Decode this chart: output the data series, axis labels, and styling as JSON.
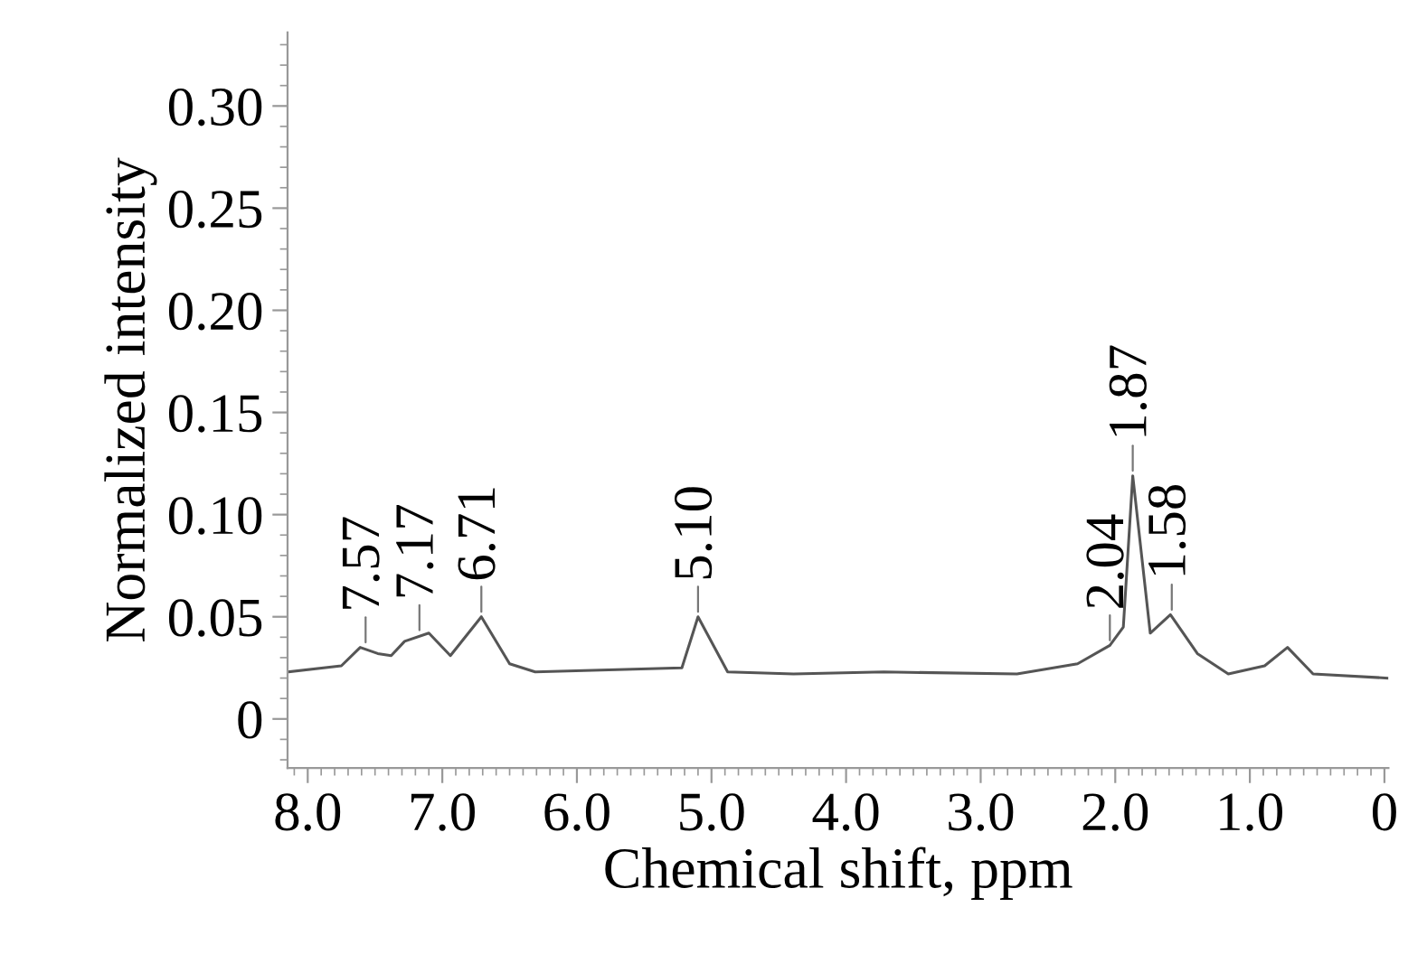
{
  "chart_data": {
    "type": "line",
    "xlabel": "Chemical shift, ppm",
    "ylabel": "Normalized intensity",
    "x": [
      8.15,
      7.75,
      7.61,
      7.48,
      7.38,
      7.28,
      7.1,
      6.94,
      6.71,
      6.5,
      6.31,
      5.22,
      5.1,
      4.88,
      4.39,
      3.72,
      2.73,
      2.28,
      2.04,
      1.94,
      1.87,
      1.74,
      1.59,
      1.39,
      1.16,
      0.89,
      0.72,
      0.53,
      -0.02
    ],
    "series": [
      {
        "color": "#555555",
        "values": [
          0.023,
          0.026,
          0.035,
          0.032,
          0.031,
          0.038,
          0.042,
          0.031,
          0.05,
          0.027,
          0.023,
          0.025,
          0.05,
          0.023,
          0.022,
          0.023,
          0.022,
          0.027,
          0.036,
          0.045,
          0.119,
          0.042,
          0.051,
          0.032,
          0.022,
          0.026,
          0.035,
          0.022,
          0.02
        ]
      }
    ],
    "xlim": [
      8.15,
      -0.03
    ],
    "ylim": [
      -0.024,
      0.336
    ],
    "xticks": [
      {
        "value": 8.0,
        "label": "8.0"
      },
      {
        "value": 7.0,
        "label": "7.0"
      },
      {
        "value": 6.0,
        "label": "6.0"
      },
      {
        "value": 5.0,
        "label": "5.0"
      },
      {
        "value": 4.0,
        "label": "4.0"
      },
      {
        "value": 3.0,
        "label": "3.0"
      },
      {
        "value": 2.0,
        "label": "2.0"
      },
      {
        "value": 1.0,
        "label": "1.0"
      },
      0
    ],
    "yticks": [
      0,
      0.05,
      {
        "value": 0.1,
        "label": "0.10"
      },
      0.15,
      {
        "value": 0.2,
        "label": "0.20"
      },
      0.25,
      {
        "value": 0.3,
        "label": "0.30"
      }
    ],
    "grid": false,
    "legend": false,
    "annotations": [
      {
        "text": "7.57",
        "x": 7.57,
        "y": 0.035
      },
      {
        "text": "7.17",
        "x": 7.17,
        "y": 0.041
      },
      {
        "text": "6.71",
        "x": 6.71,
        "y": 0.05
      },
      {
        "text": "5.10",
        "x": 5.1,
        "y": 0.05
      },
      {
        "text": "2.04",
        "x": 2.04,
        "y": 0.036
      },
      {
        "text": "1.87",
        "x": 1.87,
        "y": 0.119
      },
      {
        "text": "1.58",
        "x": 1.58,
        "y": 0.051
      }
    ]
  }
}
